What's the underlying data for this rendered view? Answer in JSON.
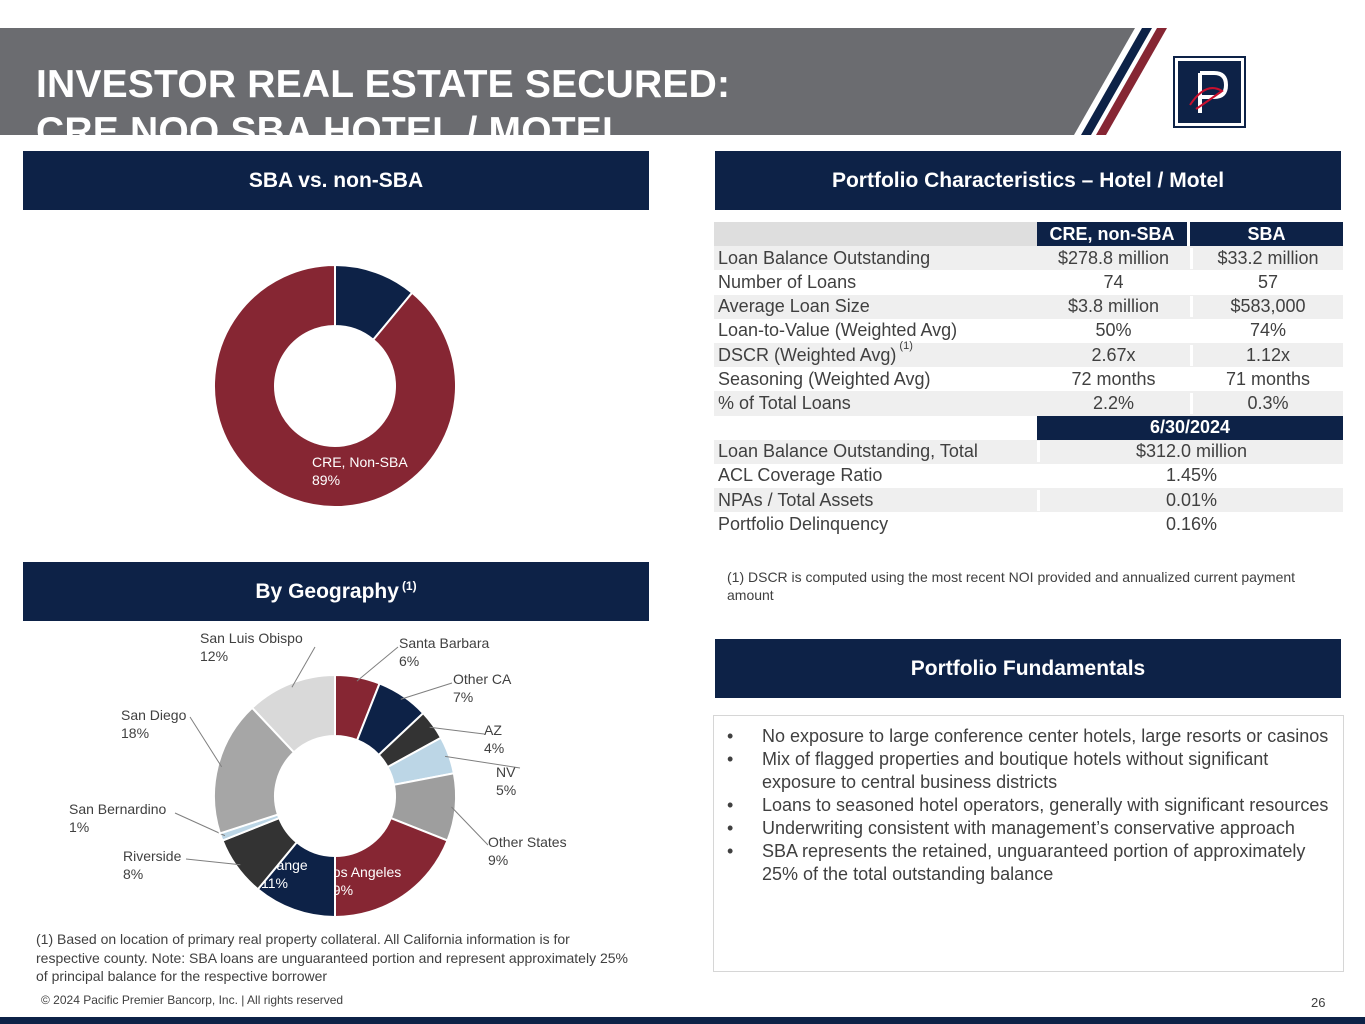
{
  "title": {
    "line1": "INVESTOR REAL ESTATE SECURED:",
    "line2": "CRE NOO SBA HOTEL / MOTEL"
  },
  "colors": {
    "navy": "#0d2247",
    "maroon": "#862633",
    "gray_banner": "#6b6c70",
    "light_blue": "#bcd6e6"
  },
  "logo": {
    "icon": "pacific-premier-logo"
  },
  "sba_section": {
    "header": "SBA vs. non-SBA",
    "chart_data": {
      "type": "pie",
      "donut": true,
      "slices": [
        {
          "label": "SBA",
          "value_label": "11%",
          "value": 11,
          "color": "#0d2247"
        },
        {
          "label": "CRE, Non-SBA",
          "value_label": "89%",
          "value": 89,
          "color": "#862633"
        }
      ]
    }
  },
  "geo_section": {
    "header": "By Geography",
    "header_sup": "(1)",
    "chart_data": {
      "type": "pie",
      "donut": true,
      "slices": [
        {
          "label": "Santa Barbara",
          "value_label": "6%",
          "value": 6,
          "color": "#862633"
        },
        {
          "label": "Other CA",
          "value_label": "7%",
          "value": 7,
          "color": "#0d2247"
        },
        {
          "label": "AZ",
          "value_label": "4%",
          "value": 4,
          "color": "#333333"
        },
        {
          "label": "NV",
          "value_label": "5%",
          "value": 5,
          "color": "#bcd6e6"
        },
        {
          "label": "Other States",
          "value_label": "9%",
          "value": 9,
          "color": "#9e9e9e"
        },
        {
          "label": "Los Angeles",
          "value_label": "19%",
          "value": 19,
          "color": "#862633"
        },
        {
          "label": "Orange",
          "value_label": "11%",
          "value": 11,
          "color": "#0d2247"
        },
        {
          "label": "Riverside",
          "value_label": "8%",
          "value": 8,
          "color": "#333333"
        },
        {
          "label": "San Bernardino",
          "value_label": "1%",
          "value": 1,
          "color": "#bcd6e6"
        },
        {
          "label": "San Diego",
          "value_label": "18%",
          "value": 18,
          "color": "#a6a6a6"
        },
        {
          "label": "San Luis Obispo",
          "value_label": "12%",
          "value": 12,
          "color": "#d9d9d9"
        }
      ]
    },
    "footnote": "(1) Based on location of primary real property collateral. All California information is for respective county. Note: SBA loans are unguaranteed portion and represent approximately 25% of principal balance for the respective borrower"
  },
  "portfolio": {
    "header": "Portfolio Characteristics – Hotel / Motel",
    "col_headers": [
      "CRE, non-SBA",
      "SBA"
    ],
    "rows": [
      {
        "label": "Loan Balance Outstanding",
        "sup": "",
        "v1": "$278.8 million",
        "v2": "$33.2 million"
      },
      {
        "label": "Number of Loans",
        "sup": "",
        "v1": "74",
        "v2": "57"
      },
      {
        "label": "Average Loan Size",
        "sup": "",
        "v1": "$3.8 million",
        "v2": "$583,000"
      },
      {
        "label": "Loan-to-Value (Weighted Avg)",
        "sup": "",
        "v1": "50%",
        "v2": "74%"
      },
      {
        "label": "DSCR (Weighted Avg)",
        "sup": "(1)",
        "v1": "2.67x",
        "v2": "1.12x"
      },
      {
        "label": "Seasoning (Weighted Avg)",
        "sup": "",
        "v1": "72 months",
        "v2": "71 months"
      },
      {
        "label": "% of Total Loans",
        "sup": "",
        "v1": "2.2%",
        "v2": "0.3%"
      }
    ],
    "date_header": "6/30/2024",
    "total_rows": [
      {
        "label": "Loan Balance Outstanding, Total",
        "value": "$312.0 million"
      },
      {
        "label": "ACL Coverage Ratio",
        "value": "1.45%"
      },
      {
        "label": "NPAs / Total Assets",
        "value": "0.01%"
      },
      {
        "label": "Portfolio Delinquency",
        "value": "0.16%"
      }
    ],
    "footnote": "(1) DSCR is computed using the most recent NOI provided and annualized current payment amount"
  },
  "fundamentals": {
    "header": "Portfolio Fundamentals",
    "bullets": [
      "No exposure to large conference center hotels, large resorts or casinos",
      "Mix of flagged properties and boutique hotels without significant exposure to central business districts",
      "Loans to seasoned hotel operators, generally with significant resources",
      "Underwriting consistent with management’s conservative approach",
      "SBA represents the retained, unguaranteed portion of approximately 25% of the total outstanding balance"
    ]
  },
  "footer": {
    "copyright": "© 2024 Pacific Premier Bancorp, Inc. | All rights reserved",
    "page_number": "26"
  }
}
